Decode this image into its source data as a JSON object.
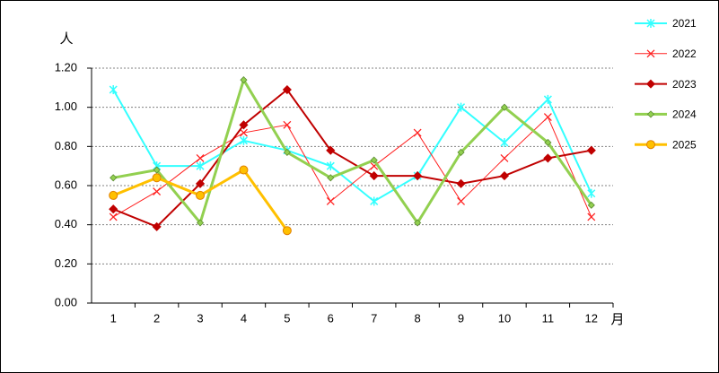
{
  "chart_data": {
    "type": "line",
    "y_label": "人",
    "x_label": "月",
    "categories": [
      "1",
      "2",
      "3",
      "4",
      "5",
      "6",
      "7",
      "8",
      "9",
      "10",
      "11",
      "12"
    ],
    "ylim": [
      0,
      1.2
    ],
    "yticks": [
      {
        "value": 0,
        "label": "0.00"
      },
      {
        "value": 0.2,
        "label": "0.20"
      },
      {
        "value": 0.4,
        "label": "0.40"
      },
      {
        "value": 0.6,
        "label": "0.60"
      },
      {
        "value": 0.8,
        "label": "0.80"
      },
      {
        "value": 1,
        "label": "1.00"
      },
      {
        "value": 1.2,
        "label": "1.20"
      }
    ],
    "grid": true,
    "legend": "right",
    "series": [
      {
        "name": "2021",
        "color": "#33ffff",
        "marker": "asterisk",
        "values": [
          1.09,
          0.7,
          0.7,
          0.83,
          0.78,
          0.7,
          0.52,
          0.65,
          1.0,
          0.82,
          1.04,
          0.56
        ]
      },
      {
        "name": "2022",
        "color": "#ff2020",
        "marker": "x",
        "values": [
          0.44,
          0.57,
          0.74,
          0.87,
          0.91,
          0.52,
          0.7,
          0.87,
          0.52,
          0.74,
          0.95,
          0.44
        ]
      },
      {
        "name": "2023",
        "color": "#c00000",
        "marker": "diamond",
        "values": [
          0.48,
          0.39,
          0.61,
          0.91,
          1.09,
          0.78,
          0.65,
          0.65,
          0.61,
          0.65,
          0.74,
          0.78
        ]
      },
      {
        "name": "2024",
        "color": "#92d050",
        "marker": "diamond",
        "values": [
          0.64,
          0.68,
          0.41,
          1.14,
          0.77,
          0.64,
          0.73,
          0.41,
          0.77,
          1.0,
          0.82,
          0.5
        ]
      },
      {
        "name": "2025",
        "color": "#ffc000",
        "marker": "circle",
        "values": [
          0.55,
          0.64,
          0.55,
          0.68,
          0.37,
          null,
          null,
          null,
          null,
          null,
          null,
          null
        ]
      }
    ]
  }
}
